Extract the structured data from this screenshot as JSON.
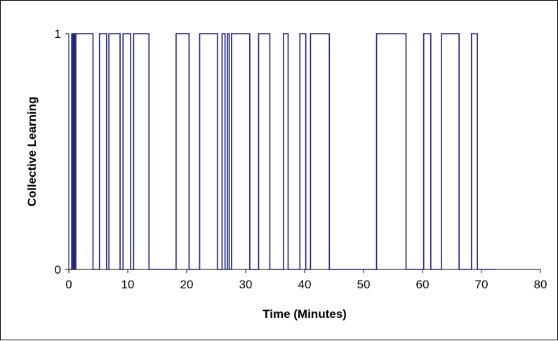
{
  "chart_data": {
    "type": "line",
    "step": true,
    "title": "",
    "xlabel": "Time (Minutes)",
    "ylabel": "Collective Learning",
    "xlim": [
      0,
      80
    ],
    "ylim": [
      0,
      1
    ],
    "x_ticks": [
      0,
      10,
      20,
      30,
      40,
      50,
      60,
      70,
      80
    ],
    "y_ticks": [
      0,
      1
    ],
    "grid": false,
    "legend": "none",
    "colors": {
      "series": "#1b1f7a",
      "axes": "#000000"
    },
    "series": [
      {
        "intervals_at_1": [
          [
            0.5,
            0.6
          ],
          [
            0.8,
            1.0
          ],
          [
            1.2,
            4.1
          ],
          [
            5.2,
            6.4
          ],
          [
            6.8,
            8.7
          ],
          [
            9.2,
            10.5
          ],
          [
            11.0,
            13.6
          ],
          [
            18.2,
            20.4
          ],
          [
            22.2,
            25.2
          ],
          [
            26.0,
            26.5
          ],
          [
            26.9,
            27.2
          ],
          [
            27.6,
            30.7
          ],
          [
            32.2,
            34.1
          ],
          [
            36.4,
            37.2
          ],
          [
            39.2,
            40.2
          ],
          [
            41.0,
            44.2
          ],
          [
            52.2,
            57.2
          ],
          [
            60.2,
            61.4
          ],
          [
            63.2,
            66.2
          ],
          [
            68.3,
            69.3
          ]
        ],
        "x_end": 72.5
      }
    ]
  }
}
